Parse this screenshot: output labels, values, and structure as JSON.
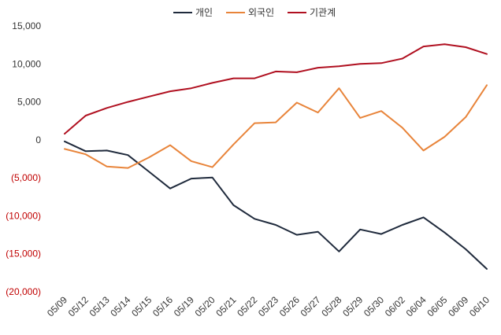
{
  "chart_data": {
    "type": "line",
    "title": "",
    "xlabel": "",
    "ylabel": "",
    "ylim": [
      -20000,
      15000
    ],
    "yticks": [
      15000,
      10000,
      5000,
      0,
      -5000,
      -10000,
      -15000,
      -20000
    ],
    "ytick_labels": [
      "15,000",
      "10,000",
      "5,000",
      "0",
      "(5,000)",
      "(10,000)",
      "(15,000)",
      "(20,000)"
    ],
    "negative_label_color": "#c00000",
    "positive_label_color": "#333333",
    "grid": false,
    "legend_position": "top-center",
    "categories": [
      "05/09",
      "05/12",
      "05/13",
      "05/14",
      "05/15",
      "05/16",
      "05/19",
      "05/20",
      "05/21",
      "05/22",
      "05/23",
      "05/26",
      "05/27",
      "05/28",
      "05/29",
      "05/30",
      "06/02",
      "06/04",
      "06/05",
      "06/09",
      "06/10"
    ],
    "series": [
      {
        "name": "개인",
        "color": "#1f2a3c",
        "values": [
          -200,
          -1500,
          -1400,
          -2000,
          -4200,
          -6400,
          -5100,
          -4950,
          -8600,
          -10400,
          -11200,
          -12500,
          -12100,
          -14700,
          -11800,
          -12400,
          -11200,
          -10200,
          -12200,
          -14400,
          -17000
        ]
      },
      {
        "name": "외국인",
        "color": "#e8843a",
        "values": [
          -1200,
          -1900,
          -3500,
          -3700,
          -2300,
          -700,
          -2800,
          -3600,
          -600,
          2200,
          2300,
          4900,
          3600,
          6800,
          2900,
          3800,
          1600,
          -1400,
          400,
          3000,
          7200
        ]
      },
      {
        "name": "기관계",
        "color": "#b01020",
        "values": [
          800,
          3200,
          4200,
          5000,
          5700,
          6400,
          6800,
          7500,
          8100,
          8100,
          9000,
          8900,
          9500,
          9700,
          10000,
          10100,
          10700,
          12300,
          12600,
          12200,
          11300
        ]
      }
    ]
  }
}
